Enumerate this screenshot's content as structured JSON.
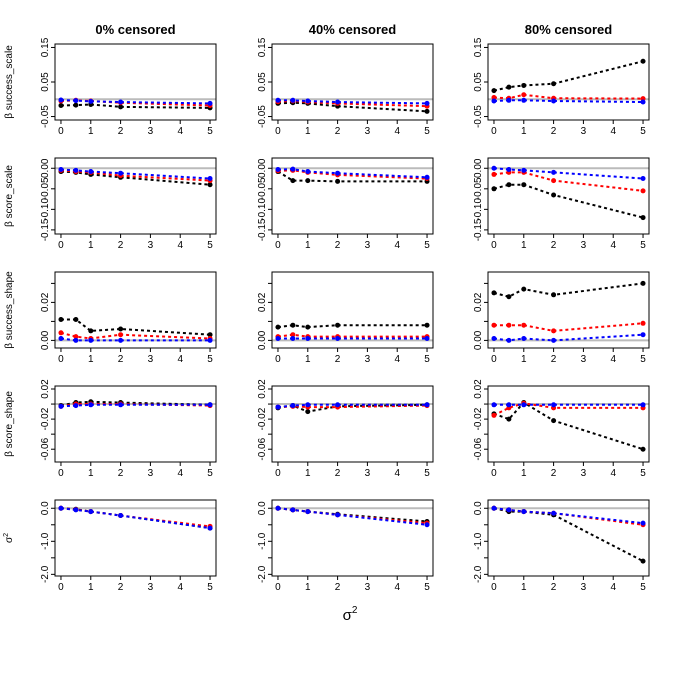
{
  "chart_data": {
    "type": "line",
    "layout": "grid",
    "column_titles": [
      "0% censored",
      "40% censored",
      "80% censored"
    ],
    "x_axis": {
      "label_base": "σ",
      "label_superscript": "2",
      "ticks": [
        0,
        1,
        2,
        3,
        4,
        5
      ],
      "x": [
        0,
        0.5,
        1,
        2,
        5
      ]
    },
    "series_colors": {
      "black": "#000000",
      "red": "#ff0000",
      "blue": "#0000ff",
      "reference": "#bbbbbb"
    },
    "rows": [
      {
        "ylabel": "β success_scale",
        "ylim": [
          -0.06,
          0.16
        ],
        "yticks": [
          -0.05,
          0.05,
          0.15
        ],
        "ytick_labels": [
          "-0.05",
          "0.05",
          "0.15"
        ],
        "reference_y": 0.0,
        "panels": [
          {
            "series": {
              "black": [
                -0.018,
                -0.017,
                -0.015,
                -0.022,
                -0.025
              ],
              "red": [
                -0.005,
                -0.003,
                -0.005,
                -0.01,
                -0.018
              ],
              "blue": [
                -0.002,
                -0.004,
                -0.006,
                -0.008,
                -0.012
              ]
            }
          },
          {
            "series": {
              "black": [
                -0.012,
                -0.01,
                -0.012,
                -0.02,
                -0.035
              ],
              "red": [
                -0.007,
                -0.005,
                -0.008,
                -0.012,
                -0.02
              ],
              "blue": [
                -0.003,
                -0.003,
                -0.005,
                -0.008,
                -0.012
              ]
            }
          },
          {
            "series": {
              "black": [
                0.025,
                0.035,
                0.04,
                0.045,
                0.11
              ],
              "red": [
                0.005,
                0.003,
                0.013,
                0.003,
                0.002
              ],
              "blue": [
                -0.005,
                -0.003,
                -0.003,
                -0.005,
                -0.008
              ]
            }
          }
        ]
      },
      {
        "ylabel": "β score_scale",
        "ylim": [
          -0.16,
          0.025
        ],
        "yticks": [
          -0.15,
          -0.1,
          -0.05,
          0.0
        ],
        "ytick_labels": [
          "-0.15",
          "-0.10",
          "-0.05",
          "0.00"
        ],
        "reference_y": 0.0,
        "panels": [
          {
            "series": {
              "black": [
                -0.008,
                -0.01,
                -0.015,
                -0.022,
                -0.04
              ],
              "red": [
                -0.005,
                -0.008,
                -0.01,
                -0.018,
                -0.03
              ],
              "blue": [
                -0.003,
                -0.005,
                -0.008,
                -0.012,
                -0.025
              ]
            }
          },
          {
            "series": {
              "black": [
                -0.008,
                -0.03,
                -0.03,
                -0.032,
                -0.032
              ],
              "red": [
                -0.006,
                -0.005,
                -0.01,
                -0.016,
                -0.025
              ],
              "blue": [
                -0.003,
                -0.002,
                -0.008,
                -0.012,
                -0.022
              ]
            }
          },
          {
            "series": {
              "black": [
                -0.05,
                -0.04,
                -0.04,
                -0.065,
                -0.12
              ],
              "red": [
                -0.015,
                -0.01,
                -0.01,
                -0.03,
                -0.055
              ],
              "blue": [
                0.0,
                -0.003,
                -0.005,
                -0.01,
                -0.025
              ]
            }
          }
        ]
      },
      {
        "ylabel": "β success_shape",
        "ylim": [
          -0.004,
          0.036
        ],
        "yticks": [
          0.0,
          0.01,
          0.02,
          0.03
        ],
        "ytick_labels": [
          "0.00",
          "",
          "0.02",
          ""
        ],
        "reference_y": 0.0,
        "panels": [
          {
            "series": {
              "black": [
                0.011,
                0.011,
                0.005,
                0.006,
                0.003
              ],
              "red": [
                0.004,
                0.002,
                0.001,
                0.003,
                0.001
              ],
              "blue": [
                0.001,
                0.0,
                0.0,
                0.0,
                0.0
              ]
            }
          },
          {
            "series": {
              "black": [
                0.007,
                0.008,
                0.007,
                0.008,
                0.008
              ],
              "red": [
                0.002,
                0.003,
                0.002,
                0.002,
                0.002
              ],
              "blue": [
                0.001,
                0.001,
                0.001,
                0.001,
                0.001
              ]
            }
          },
          {
            "series": {
              "black": [
                0.025,
                0.023,
                0.027,
                0.024,
                0.03
              ],
              "red": [
                0.008,
                0.008,
                0.008,
                0.005,
                0.009
              ],
              "blue": [
                0.001,
                0.0,
                0.001,
                0.0,
                0.003
              ]
            }
          }
        ]
      },
      {
        "ylabel": "β score_shape",
        "ylim": [
          -0.077,
          0.024
        ],
        "yticks": [
          -0.06,
          -0.04,
          -0.02,
          0.0,
          0.02
        ],
        "ytick_labels": [
          "-0.06",
          "",
          "-0.02",
          "",
          "0.02"
        ],
        "reference_y": 0.0,
        "panels": [
          {
            "series": {
              "black": [
                -0.002,
                0.002,
                0.003,
                0.002,
                -0.001
              ],
              "red": [
                -0.003,
                0.0,
                0.0,
                0.0,
                -0.002
              ],
              "blue": [
                -0.003,
                -0.002,
                -0.001,
                -0.001,
                -0.001
              ]
            }
          },
          {
            "series": {
              "black": [
                -0.005,
                -0.002,
                -0.01,
                -0.003,
                -0.001
              ],
              "red": [
                -0.004,
                -0.003,
                -0.004,
                -0.004,
                -0.002
              ],
              "blue": [
                -0.004,
                -0.002,
                -0.001,
                -0.001,
                -0.001
              ]
            }
          },
          {
            "series": {
              "black": [
                -0.013,
                -0.02,
                0.002,
                -0.022,
                -0.06
              ],
              "red": [
                -0.015,
                -0.005,
                0.001,
                -0.005,
                -0.005
              ],
              "blue": [
                -0.001,
                -0.001,
                -0.001,
                -0.001,
                -0.001
              ]
            }
          }
        ]
      },
      {
        "ylabel": "σ",
        "ylabel_superscript": "2",
        "ylim": [
          -2.05,
          0.25
        ],
        "yticks": [
          -2.0,
          -1.5,
          -1.0,
          -0.5,
          0.0
        ],
        "ytick_labels": [
          "-2.0",
          "",
          "-1.0",
          "",
          "0.0"
        ],
        "reference_y": 0.0,
        "panels": [
          {
            "series": {
              "black": [
                0.0,
                -0.03,
                -0.1,
                -0.22,
                -0.6
              ],
              "red": [
                0.0,
                -0.04,
                -0.1,
                -0.22,
                -0.55
              ],
              "blue": [
                0.0,
                -0.05,
                -0.1,
                -0.22,
                -0.6
              ]
            }
          },
          {
            "series": {
              "black": [
                0.0,
                -0.05,
                -0.1,
                -0.18,
                -0.4
              ],
              "red": [
                0.0,
                -0.05,
                -0.1,
                -0.2,
                -0.45
              ],
              "blue": [
                0.0,
                -0.05,
                -0.1,
                -0.2,
                -0.5
              ]
            }
          },
          {
            "series": {
              "black": [
                0.0,
                -0.1,
                -0.1,
                -0.2,
                -1.6
              ],
              "red": [
                0.0,
                -0.05,
                -0.1,
                -0.15,
                -0.5
              ],
              "blue": [
                0.0,
                -0.05,
                -0.1,
                -0.15,
                -0.45
              ]
            }
          }
        ]
      }
    ]
  }
}
